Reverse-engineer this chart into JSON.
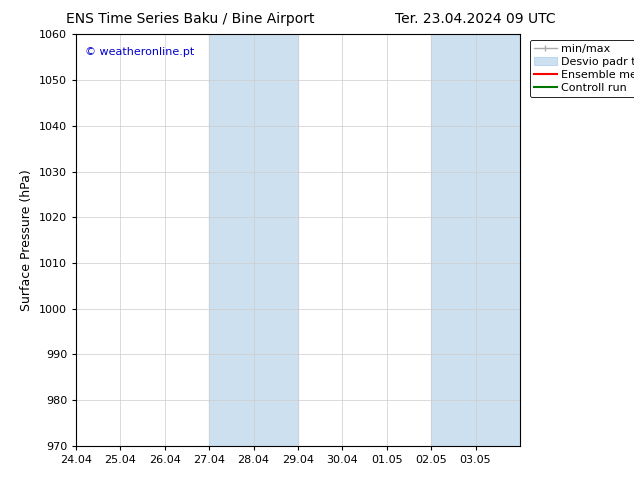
{
  "title_left": "ENS Time Series Baku / Bine Airport",
  "title_right": "Ter. 23.04.2024 09 UTC",
  "ylabel": "Surface Pressure (hPa)",
  "ylim": [
    970,
    1060
  ],
  "yticks": [
    970,
    980,
    990,
    1000,
    1010,
    1020,
    1030,
    1040,
    1050,
    1060
  ],
  "xtick_labels": [
    "24.04",
    "25.04",
    "26.04",
    "27.04",
    "28.04",
    "29.04",
    "30.04",
    "01.05",
    "02.05",
    "03.05"
  ],
  "copyright_text": "© weatheronline.pt",
  "copyright_color": "#0000cc",
  "bg_color": "#ffffff",
  "plot_bg_color": "#ffffff",
  "shaded_regions": [
    {
      "xstart": "2024-04-27",
      "xend": "2024-04-29",
      "color": "#cce0f0"
    },
    {
      "xstart": "2024-05-02",
      "xend": "2024-05-04",
      "color": "#cce0f0"
    }
  ],
  "legend_entries": [
    {
      "label": "min/max",
      "color": "#aaaaaa"
    },
    {
      "label": "Desvio padr tilde;o",
      "color": "#cce0f0"
    },
    {
      "label": "Ensemble mean run",
      "color": "#ff0000"
    },
    {
      "label": "Controll run",
      "color": "#006600"
    }
  ],
  "title_fontsize": 10,
  "axis_label_fontsize": 9,
  "tick_fontsize": 8,
  "legend_fontsize": 8,
  "grid_color": "#cccccc",
  "spine_color": "#000000"
}
